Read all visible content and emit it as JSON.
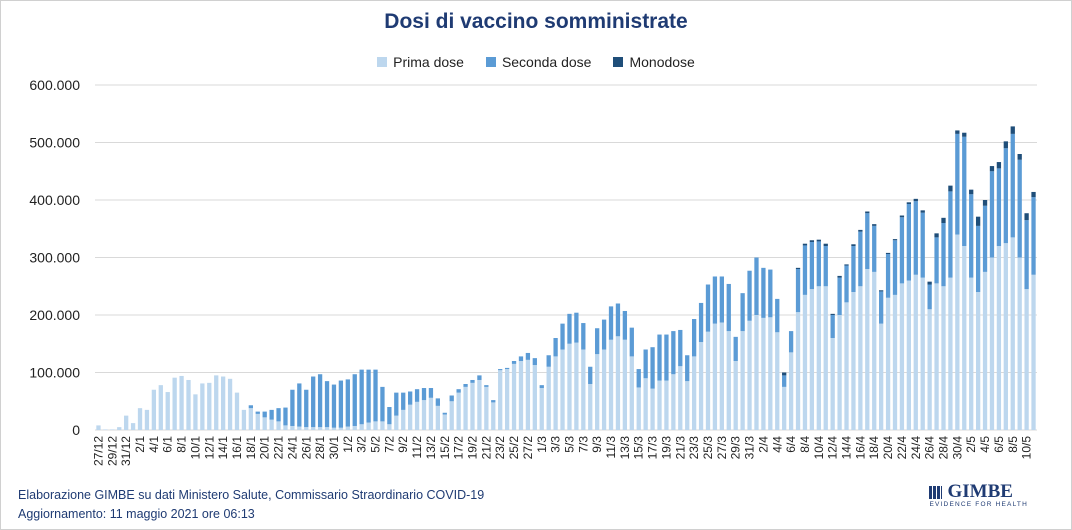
{
  "chart_data": {
    "type": "bar",
    "stacked": true,
    "title": "Dosi di vaccino somministrate",
    "ylim": [
      0,
      600000
    ],
    "y_ticks": [
      0,
      100000,
      200000,
      300000,
      400000,
      500000,
      600000
    ],
    "y_tick_labels": [
      "0",
      "100.000",
      "200.000",
      "300.000",
      "400.000",
      "500.000",
      "600.000"
    ],
    "grid": true,
    "legend_position": "top-center",
    "series": [
      {
        "name": "Prima dose",
        "color": "#bdd7ee",
        "values": [
          8000,
          1000,
          1000,
          5000,
          25000,
          12000,
          38000,
          35000,
          70000,
          78000,
          66000,
          91000,
          94000,
          87000,
          62000,
          81000,
          82000,
          95000,
          93000,
          89000,
          65000,
          35000,
          38000,
          28000,
          22000,
          18000,
          15000,
          8000,
          7000,
          6000,
          5000,
          5000,
          5000,
          5000,
          4000,
          4000,
          6000,
          7000,
          10000,
          13000,
          15000,
          15000,
          10000,
          25000,
          35000,
          44000,
          49000,
          52000,
          56000,
          42000,
          27000,
          50000,
          65000,
          75000,
          82000,
          87000,
          75000,
          48000,
          104000,
          106000,
          115000,
          120000,
          122000,
          113000,
          73000,
          110000,
          128000,
          140000,
          150000,
          152000,
          140000,
          80000,
          132000,
          140000,
          157000,
          163000,
          157000,
          128000,
          74000,
          90000,
          72000,
          86000,
          86000,
          97000,
          111000,
          85000,
          128000,
          153000,
          171000,
          185000,
          187000,
          172000,
          120000,
          172000,
          190000,
          200000,
          195000,
          196000,
          170000,
          75000,
          135000,
          205000,
          235000,
          245000,
          250000,
          250000,
          160000,
          200000,
          222000,
          240000,
          250000,
          280000,
          275000,
          185000,
          230000,
          235000,
          255000,
          260000,
          270000,
          265000,
          210000,
          255000,
          250000,
          265000,
          340000,
          320000,
          265000,
          240000,
          275000,
          300000,
          320000,
          325000,
          335000,
          300000,
          245000,
          270000
        ]
      },
      {
        "name": "Seconda dose",
        "color": "#5b9bd5",
        "values": [
          0,
          0,
          0,
          0,
          0,
          0,
          0,
          0,
          0,
          0,
          0,
          0,
          0,
          0,
          0,
          0,
          0,
          0,
          0,
          0,
          0,
          0,
          5000,
          4000,
          10000,
          17000,
          23000,
          31000,
          63000,
          75000,
          65000,
          88000,
          92000,
          80000,
          75000,
          82000,
          82000,
          90000,
          95000,
          92000,
          90000,
          60000,
          30000,
          40000,
          30000,
          23000,
          22000,
          21000,
          17000,
          13000,
          3000,
          10000,
          6000,
          5000,
          5000,
          8000,
          3000,
          4000,
          2000,
          2000,
          5000,
          8000,
          12000,
          12000,
          5000,
          20000,
          32000,
          45000,
          52000,
          52000,
          46000,
          30000,
          45000,
          52000,
          58000,
          57000,
          50000,
          50000,
          32000,
          50000,
          72000,
          80000,
          80000,
          75000,
          63000,
          45000,
          65000,
          68000,
          82000,
          82000,
          80000,
          82000,
          42000,
          66000,
          87000,
          100000,
          87000,
          83000,
          58000,
          20000,
          37000,
          75000,
          86000,
          82000,
          78000,
          70000,
          40000,
          65000,
          64000,
          80000,
          95000,
          97000,
          80000,
          56000,
          76000,
          95000,
          115000,
          133000,
          128000,
          113000,
          43000,
          80000,
          110000,
          150000,
          175000,
          190000,
          145000,
          115000,
          115000,
          150000,
          135000,
          165000,
          180000,
          170000,
          120000,
          135000
        ]
      },
      {
        "name": "Monodose",
        "color": "#1f4e79",
        "values": [
          0,
          0,
          0,
          0,
          0,
          0,
          0,
          0,
          0,
          0,
          0,
          0,
          0,
          0,
          0,
          0,
          0,
          0,
          0,
          0,
          0,
          0,
          0,
          0,
          0,
          0,
          0,
          0,
          0,
          0,
          0,
          0,
          0,
          0,
          0,
          0,
          0,
          0,
          0,
          0,
          0,
          0,
          0,
          0,
          0,
          0,
          0,
          0,
          0,
          0,
          0,
          0,
          0,
          0,
          0,
          0,
          0,
          0,
          0,
          0,
          0,
          0,
          0,
          0,
          0,
          0,
          0,
          0,
          0,
          0,
          0,
          0,
          0,
          0,
          0,
          0,
          0,
          0,
          0,
          0,
          0,
          0,
          0,
          0,
          0,
          0,
          0,
          0,
          0,
          0,
          0,
          0,
          0,
          0,
          0,
          0,
          0,
          0,
          0,
          5000,
          0,
          2000,
          3000,
          3000,
          3000,
          4000,
          2000,
          3000,
          2000,
          3000,
          3000,
          3000,
          3000,
          2000,
          2000,
          2000,
          3000,
          3000,
          4000,
          4000,
          5000,
          7000,
          9000,
          10000,
          6000,
          7000,
          8000,
          16000,
          10000,
          9000,
          11000,
          12000,
          13000,
          10000,
          12000,
          9000
        ]
      }
    ],
    "tick_labels": [
      "27/12",
      "29/12",
      "31/12",
      "2/1",
      "4/1",
      "6/1",
      "8/1",
      "10/1",
      "12/1",
      "14/1",
      "16/1",
      "18/1",
      "20/1",
      "22/1",
      "24/1",
      "26/1",
      "28/1",
      "30/1",
      "1/2",
      "3/2",
      "5/2",
      "7/2",
      "9/2",
      "11/2",
      "13/2",
      "15/2",
      "17/2",
      "19/2",
      "21/2",
      "23/2",
      "25/2",
      "27/2",
      "1/3",
      "3/3",
      "5/3",
      "7/3",
      "9/3",
      "11/3",
      "13/3",
      "15/3",
      "17/3",
      "19/3",
      "21/3",
      "23/3",
      "25/3",
      "27/3",
      "29/3",
      "31/3",
      "2/4",
      "4/4",
      "6/4",
      "8/4",
      "10/4",
      "12/4",
      "14/4",
      "16/4",
      "18/4",
      "20/4",
      "22/4",
      "24/4",
      "26/4",
      "28/4",
      "30/4",
      "2/5",
      "4/5",
      "6/5",
      "8/5",
      "10/5"
    ]
  },
  "footer": {
    "line1": "Elaborazione GIMBE su dati Ministero Salute, Commissario Straordinario COVID-19",
    "line2": "Aggiornamento: 11 maggio 2021  ore 06:13"
  },
  "logo": {
    "name": "GIMBE",
    "tagline": "EVIDENCE FOR HEALTH"
  }
}
